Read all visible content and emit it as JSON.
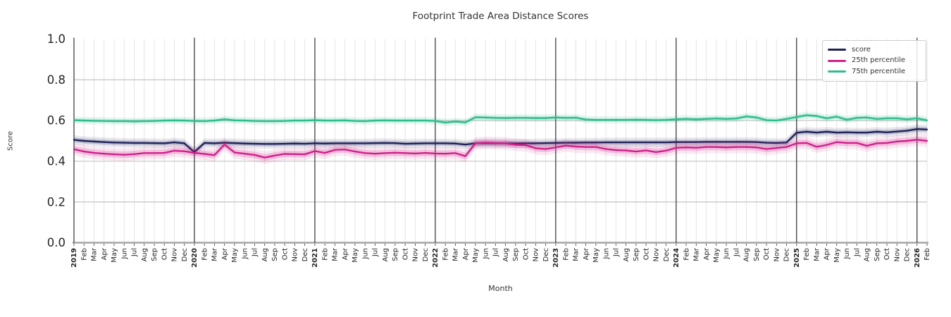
{
  "chart_data": {
    "type": "line",
    "title": "Footprint Trade Area Distance Scores",
    "xlabel": "Month",
    "ylabel": "Score",
    "ylim": [
      0.0,
      1.0
    ],
    "grid": true,
    "legend_position": "upper right",
    "yticks": [
      {
        "v": 0.0,
        "label": "0.0"
      },
      {
        "v": 0.2,
        "label": "0.2"
      },
      {
        "v": 0.4,
        "label": "0.4"
      },
      {
        "v": 0.6,
        "label": "0.6"
      },
      {
        "v": 0.8,
        "label": "0.8"
      },
      {
        "v": 1.0,
        "label": "1.0"
      }
    ],
    "x_tick_labels": [
      "2019",
      "Feb",
      "Mar",
      "Apr",
      "May",
      "Jun",
      "Jul",
      "Aug",
      "Sep",
      "Oct",
      "Nov",
      "Dec",
      "2020",
      "Feb",
      "Mar",
      "Apr",
      "May",
      "Jun",
      "Jul",
      "Aug",
      "Sep",
      "Oct",
      "Nov",
      "Dec",
      "2021",
      "Feb",
      "Mar",
      "Apr",
      "May",
      "Jun",
      "Jul",
      "Aug",
      "Sep",
      "Oct",
      "Nov",
      "Dec",
      "2022",
      "Feb",
      "Mar",
      "Apr",
      "May",
      "Jun",
      "Jul",
      "Aug",
      "Sep",
      "Oct",
      "Nov",
      "Dec",
      "2023",
      "Feb",
      "Mar",
      "Apr",
      "May",
      "Jun",
      "Jul",
      "Aug",
      "Sep",
      "Oct",
      "Nov",
      "Dec",
      "2024",
      "Feb",
      "Mar",
      "Apr",
      "May",
      "Jun",
      "Jul",
      "Aug",
      "Sep",
      "Oct",
      "Nov",
      "Dec",
      "2025",
      "Feb",
      "Mar",
      "Apr",
      "May",
      "Jun",
      "Jul",
      "Aug",
      "Sep",
      "Oct",
      "Nov",
      "Dec",
      "2026",
      "Feb"
    ],
    "series": [
      {
        "name": "score",
        "color": "#1f2159",
        "band": 0.012,
        "values": [
          0.505,
          0.5,
          0.497,
          0.494,
          0.492,
          0.491,
          0.49,
          0.49,
          0.489,
          0.488,
          0.493,
          0.488,
          0.445,
          0.49,
          0.488,
          0.491,
          0.489,
          0.487,
          0.486,
          0.485,
          0.485,
          0.486,
          0.487,
          0.486,
          0.488,
          0.487,
          0.488,
          0.488,
          0.488,
          0.488,
          0.489,
          0.49,
          0.489,
          0.486,
          0.487,
          0.488,
          0.488,
          0.488,
          0.487,
          0.482,
          0.488,
          0.489,
          0.488,
          0.488,
          0.487,
          0.488,
          0.488,
          0.489,
          0.49,
          0.491,
          0.491,
          0.492,
          0.492,
          0.493,
          0.493,
          0.493,
          0.493,
          0.493,
          0.493,
          0.493,
          0.494,
          0.494,
          0.494,
          0.495,
          0.495,
          0.495,
          0.495,
          0.495,
          0.494,
          0.491,
          0.49,
          0.492,
          0.54,
          0.545,
          0.541,
          0.545,
          0.541,
          0.542,
          0.541,
          0.541,
          0.545,
          0.542,
          0.546,
          0.55,
          0.558,
          0.556
        ]
      },
      {
        "name": "25th percentile",
        "color": "#d0208a",
        "band": 0.016,
        "values": [
          0.459,
          0.448,
          0.441,
          0.437,
          0.434,
          0.432,
          0.435,
          0.44,
          0.44,
          0.441,
          0.452,
          0.449,
          0.441,
          0.436,
          0.43,
          0.482,
          0.443,
          0.437,
          0.431,
          0.418,
          0.428,
          0.436,
          0.435,
          0.434,
          0.45,
          0.441,
          0.456,
          0.458,
          0.448,
          0.44,
          0.437,
          0.44,
          0.442,
          0.44,
          0.438,
          0.441,
          0.438,
          0.437,
          0.44,
          0.425,
          0.488,
          0.491,
          0.489,
          0.488,
          0.481,
          0.479,
          0.464,
          0.46,
          0.468,
          0.477,
          0.472,
          0.47,
          0.47,
          0.46,
          0.455,
          0.453,
          0.448,
          0.453,
          0.445,
          0.452,
          0.466,
          0.468,
          0.466,
          0.47,
          0.47,
          0.468,
          0.47,
          0.47,
          0.468,
          0.46,
          0.465,
          0.47,
          0.488,
          0.49,
          0.471,
          0.48,
          0.494,
          0.49,
          0.49,
          0.476,
          0.488,
          0.49,
          0.497,
          0.5,
          0.506,
          0.5
        ]
      },
      {
        "name": "75th percentile",
        "color": "#2dbd8e",
        "band": 0.01,
        "values": [
          0.602,
          0.6,
          0.599,
          0.598,
          0.597,
          0.597,
          0.596,
          0.597,
          0.598,
          0.6,
          0.601,
          0.6,
          0.598,
          0.597,
          0.6,
          0.606,
          0.601,
          0.6,
          0.598,
          0.597,
          0.597,
          0.598,
          0.6,
          0.6,
          0.602,
          0.6,
          0.6,
          0.601,
          0.598,
          0.597,
          0.6,
          0.601,
          0.6,
          0.6,
          0.6,
          0.6,
          0.598,
          0.59,
          0.595,
          0.591,
          0.616,
          0.615,
          0.613,
          0.612,
          0.613,
          0.613,
          0.612,
          0.612,
          0.615,
          0.613,
          0.614,
          0.605,
          0.603,
          0.603,
          0.603,
          0.603,
          0.604,
          0.603,
          0.602,
          0.603,
          0.606,
          0.608,
          0.606,
          0.608,
          0.61,
          0.608,
          0.61,
          0.62,
          0.615,
          0.602,
          0.6,
          0.608,
          0.617,
          0.626,
          0.622,
          0.611,
          0.619,
          0.604,
          0.613,
          0.615,
          0.608,
          0.611,
          0.611,
          0.606,
          0.611,
          0.601
        ]
      }
    ],
    "colors": {
      "month_gridline": "#e2e2e2",
      "major_gridline": "#c9c9c9",
      "year_line": "#2e2e2e",
      "axis_spine": "#a6a6a6",
      "tick_text": "#262626"
    }
  },
  "legend": {
    "items": [
      {
        "label": "score"
      },
      {
        "label": "25th percentile"
      },
      {
        "label": "75th percentile"
      }
    ]
  }
}
